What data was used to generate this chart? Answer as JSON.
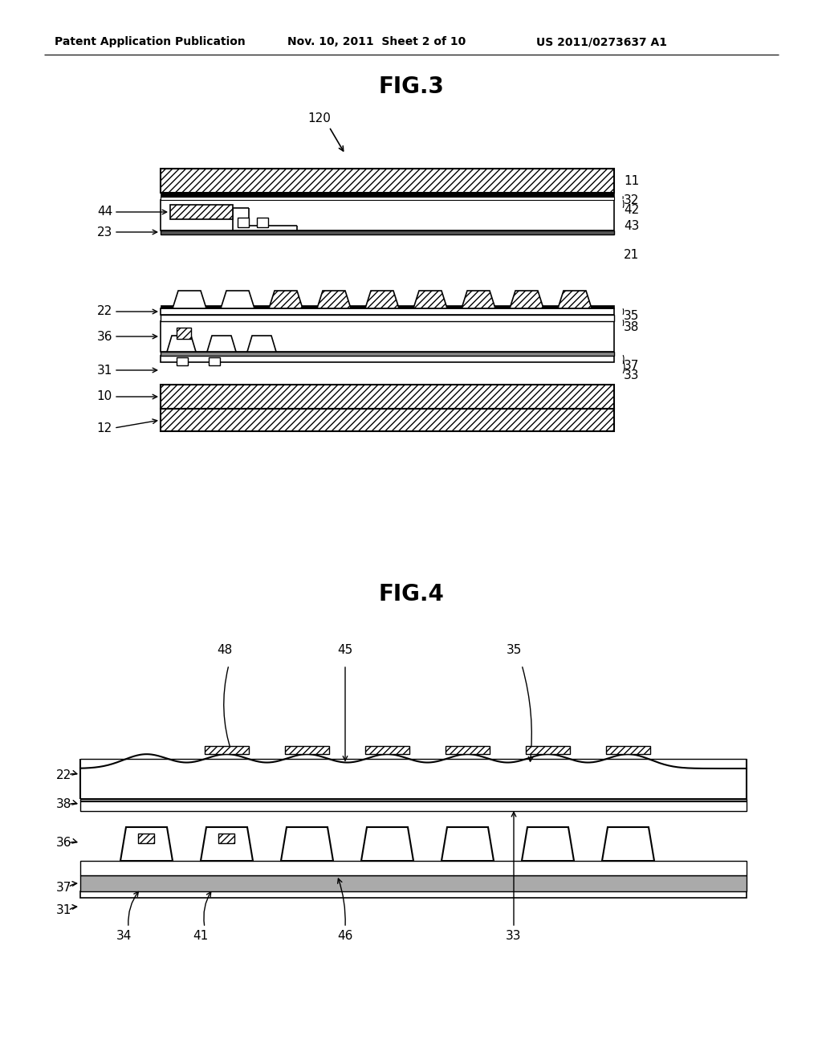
{
  "bg_color": "#ffffff",
  "fig_width": 10.24,
  "fig_height": 13.2,
  "header_text1": "Patent Application Publication",
  "header_text2": "Nov. 10, 2011  Sheet 2 of 10",
  "header_text3": "US 2011/0273637 A1",
  "fig3_title": "FIG.3",
  "fig4_title": "FIG.4",
  "label_color": "#000000"
}
